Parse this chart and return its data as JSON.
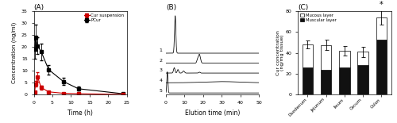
{
  "panel_A": {
    "title": "(A)",
    "xlabel": "Time (h)",
    "ylabel": "Concentration (ng/ml)",
    "ylim": [
      0,
      35
    ],
    "yticks": [
      0,
      5,
      10,
      15,
      20,
      25,
      30,
      35
    ],
    "xlim": [
      0,
      25
    ],
    "xticks": [
      0,
      5,
      10,
      15,
      20,
      25
    ],
    "PCur_x": [
      0.25,
      0.5,
      1,
      2,
      4,
      8,
      12,
      24
    ],
    "PCur_y": [
      19.0,
      24.0,
      20.5,
      18.0,
      10.5,
      5.5,
      2.5,
      0.4
    ],
    "PCur_err": [
      4.0,
      5.5,
      3.5,
      3.5,
      2.0,
      1.5,
      0.8,
      0.2
    ],
    "Cur_x": [
      0.25,
      0.5,
      1,
      2,
      4,
      8,
      12,
      24
    ],
    "Cur_y": [
      1.2,
      4.5,
      7.5,
      3.0,
      1.2,
      0.6,
      0.4,
      0.15
    ],
    "Cur_err": [
      0.4,
      1.2,
      2.0,
      0.8,
      0.4,
      0.2,
      0.15,
      0.05
    ],
    "PCur_color": "#000000",
    "Cur_color": "#cc0000",
    "legend_labels": [
      "Cur suspension",
      "PCur"
    ]
  },
  "panel_B": {
    "title": "(B)",
    "xlabel": "Elution time (min)",
    "xlim": [
      0,
      50
    ],
    "xticks": [
      0,
      10,
      20,
      30,
      40,
      50
    ]
  },
  "panel_C": {
    "title": "(C)",
    "ylabel_line1": "Cur concentration",
    "ylabel_line2": "(ng/mg tissue)",
    "ylim": [
      0,
      80
    ],
    "yticks": [
      0,
      20,
      40,
      60,
      80
    ],
    "categories": [
      "Duodenum",
      "Jejunum",
      "Ileum",
      "Cecum",
      "Colon"
    ],
    "mucous_values": [
      22.0,
      24.0,
      16.0,
      12.5,
      21.0
    ],
    "muscular_values": [
      26.0,
      23.5,
      26.0,
      28.5,
      53.0
    ],
    "total_err": [
      3.5,
      5.0,
      4.5,
      5.0,
      7.0
    ],
    "mucous_color": "#ffffff",
    "muscular_color": "#111111",
    "bar_edge_color": "#000000",
    "star_category": "Colon",
    "legend_mucous": "Mucous layer",
    "legend_muscular": "Muscular layer"
  }
}
